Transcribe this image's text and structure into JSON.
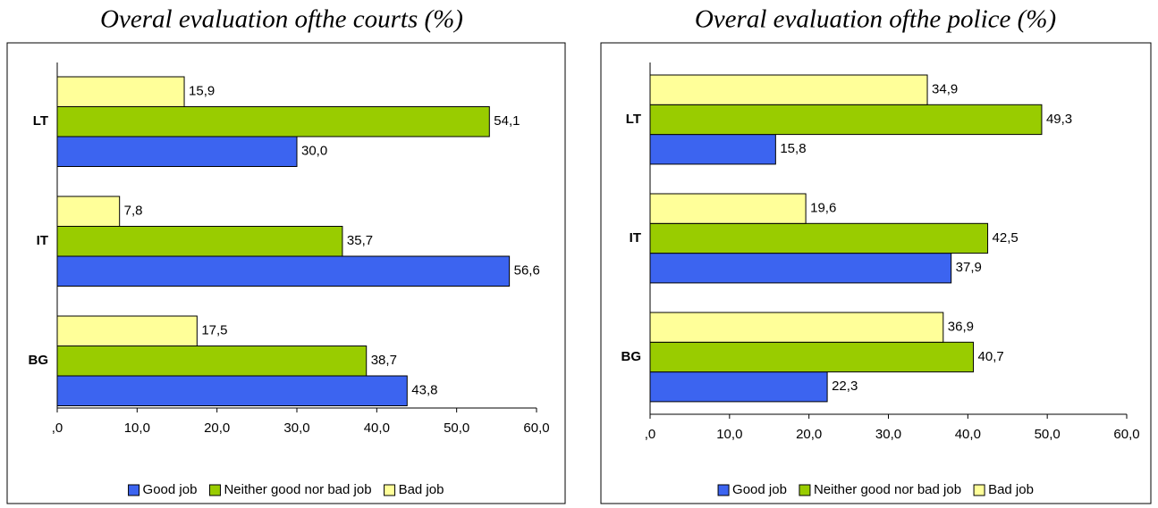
{
  "chart_data": [
    {
      "type": "barh",
      "title": "Overal evaluation ofthe courts (%)",
      "categories": [
        "LT",
        "IT",
        "BG"
      ],
      "series": [
        {
          "name": "Good job",
          "color": "#3c64f0",
          "values": [
            30,
            56.6,
            43.8
          ],
          "value_labels": [
            "30,0",
            "56,6",
            "43,8"
          ]
        },
        {
          "name": "Neither good nor bad job",
          "color": "#99cc00",
          "values": [
            54.1,
            35.7,
            38.7
          ],
          "value_labels": [
            "54,1",
            "35,7",
            "38,7"
          ]
        },
        {
          "name": "Bad job",
          "color": "#ffff99",
          "values": [
            15.9,
            7.8,
            17.5
          ],
          "value_labels": [
            "15,9",
            "7,8",
            "17,5"
          ]
        }
      ],
      "xlim": [
        0,
        60
      ],
      "xticks": [
        {
          "value": 0,
          "label": ",0"
        },
        {
          "value": 10,
          "label": "10,0"
        },
        {
          "value": 20,
          "label": "20,0"
        },
        {
          "value": 30,
          "label": "30,0"
        },
        {
          "value": 40,
          "label": "40,0"
        },
        {
          "value": 50,
          "label": "50,0"
        },
        {
          "value": 60,
          "label": "60,0"
        }
      ],
      "legend": "bottom",
      "grid": false
    },
    {
      "type": "barh",
      "title": "Overal evaluation ofthe police (%)",
      "categories": [
        "LT",
        "IT",
        "BG"
      ],
      "series": [
        {
          "name": "Good job",
          "color": "#3c64f0",
          "values": [
            15.8,
            37.9,
            22.3
          ],
          "value_labels": [
            "15,8",
            "37,9",
            "22,3"
          ]
        },
        {
          "name": "Neither good nor bad job",
          "color": "#99cc00",
          "values": [
            49.3,
            42.5,
            40.7
          ],
          "value_labels": [
            "49,3",
            "42,5",
            "40,7"
          ]
        },
        {
          "name": "Bad job",
          "color": "#ffff99",
          "values": [
            34.9,
            19.6,
            36.9
          ],
          "value_labels": [
            "34,9",
            "19,6",
            "36,9"
          ]
        }
      ],
      "xlim": [
        0,
        60
      ],
      "xticks": [
        {
          "value": 0,
          "label": ",0"
        },
        {
          "value": 10,
          "label": "10,0"
        },
        {
          "value": 20,
          "label": "20,0"
        },
        {
          "value": 30,
          "label": "30,0"
        },
        {
          "value": 40,
          "label": "40,0"
        },
        {
          "value": 50,
          "label": "50,0"
        },
        {
          "value": 60,
          "label": "60,0"
        }
      ],
      "legend": "bottom",
      "grid": false
    }
  ]
}
